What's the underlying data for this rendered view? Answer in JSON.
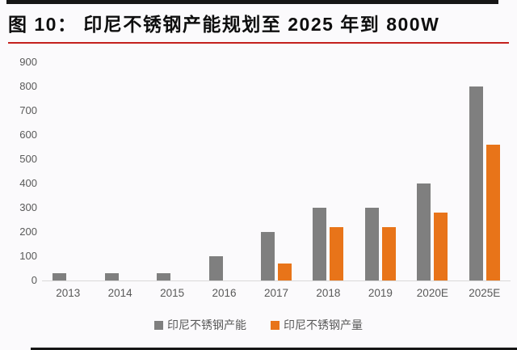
{
  "page": {
    "top_bar_color": "#161616",
    "bottom_bar_color": "#161616",
    "background_color": "#FBFAFC"
  },
  "header": {
    "title": "图 10：  印尼不锈钢产能规划至 2025 年到 800W",
    "underline_color": "#C4201D"
  },
  "chart_data": {
    "type": "bar",
    "title": "印尼不锈钢产能规划至 2025 年到 800W",
    "categories": [
      "2013",
      "2014",
      "2015",
      "2016",
      "2017",
      "2018",
      "2019",
      "2020E",
      "2025E"
    ],
    "series": [
      {
        "name": "印尼不锈钢产能",
        "color": "#7F7F7F",
        "values": [
          30,
          30,
          30,
          100,
          200,
          300,
          300,
          400,
          800
        ]
      },
      {
        "name": "印尼不锈钢产量",
        "color": "#E87419",
        "values": [
          0,
          0,
          0,
          0,
          70,
          220,
          220,
          280,
          560
        ]
      }
    ],
    "xlabel": "",
    "ylabel": "",
    "y_axis": {
      "min": 0,
      "max": 900,
      "step": 100,
      "ticks": [
        0,
        100,
        200,
        300,
        400,
        500,
        600,
        700,
        800,
        900
      ]
    },
    "grid": false,
    "legend_position": "bottom",
    "axis_line_color": "#D9D9D9",
    "tick_label_color": "#595959"
  }
}
